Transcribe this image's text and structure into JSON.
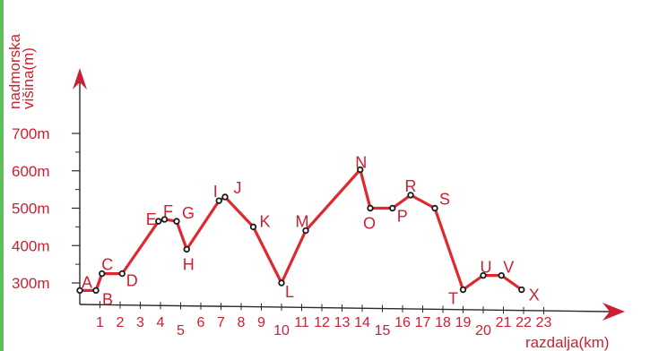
{
  "chart_data": {
    "type": "line",
    "xlabel": "razdalja(km)",
    "ylabel": "nadmorska višina(m)",
    "ylabel_lines": [
      "nadmorska",
      "višina(m)"
    ],
    "x_ticks": [
      "1",
      "2",
      "3",
      "4",
      "5",
      "6",
      "7",
      "8",
      "9",
      "10",
      "11",
      "12",
      "13",
      "14",
      "15",
      "16",
      "17",
      "18",
      "19",
      "20",
      "21",
      "22",
      "23"
    ],
    "y_ticks": [
      "300m",
      "400m",
      "500m",
      "600m",
      "700m"
    ],
    "xlim": [
      0,
      23
    ],
    "ylim": [
      250,
      760
    ],
    "grid": false,
    "colors": {
      "line": "#e0282e",
      "text": "#cc1f33",
      "axis": "#2a2a2a",
      "marker_edge": "#1a1a1a",
      "marker_fill": "#ffffff"
    },
    "points": [
      {
        "label": "A",
        "x": 0.0,
        "y": 280
      },
      {
        "label": "B",
        "x": 0.8,
        "y": 280
      },
      {
        "label": "C",
        "x": 1.1,
        "y": 325
      },
      {
        "label": "D",
        "x": 2.1,
        "y": 325
      },
      {
        "label": "E",
        "x": 3.9,
        "y": 465
      },
      {
        "label": "F",
        "x": 4.2,
        "y": 470
      },
      {
        "label": "G",
        "x": 4.8,
        "y": 465
      },
      {
        "label": "H",
        "x": 5.3,
        "y": 390
      },
      {
        "label": "I",
        "x": 6.9,
        "y": 520
      },
      {
        "label": "J",
        "x": 7.2,
        "y": 530
      },
      {
        "label": "K",
        "x": 8.6,
        "y": 450
      },
      {
        "label": "L",
        "x": 10.0,
        "y": 300
      },
      {
        "label": "M",
        "x": 11.2,
        "y": 440
      },
      {
        "label": "N",
        "x": 13.9,
        "y": 603
      },
      {
        "label": "O",
        "x": 14.4,
        "y": 500
      },
      {
        "label": "P",
        "x": 15.5,
        "y": 500
      },
      {
        "label": "R",
        "x": 16.4,
        "y": 535
      },
      {
        "label": "S",
        "x": 17.6,
        "y": 500
      },
      {
        "label": "T",
        "x": 19.0,
        "y": 282
      },
      {
        "label": "U",
        "x": 20.0,
        "y": 320
      },
      {
        "label": "V",
        "x": 20.9,
        "y": 320
      },
      {
        "label": "X",
        "x": 21.9,
        "y": 282
      }
    ]
  }
}
